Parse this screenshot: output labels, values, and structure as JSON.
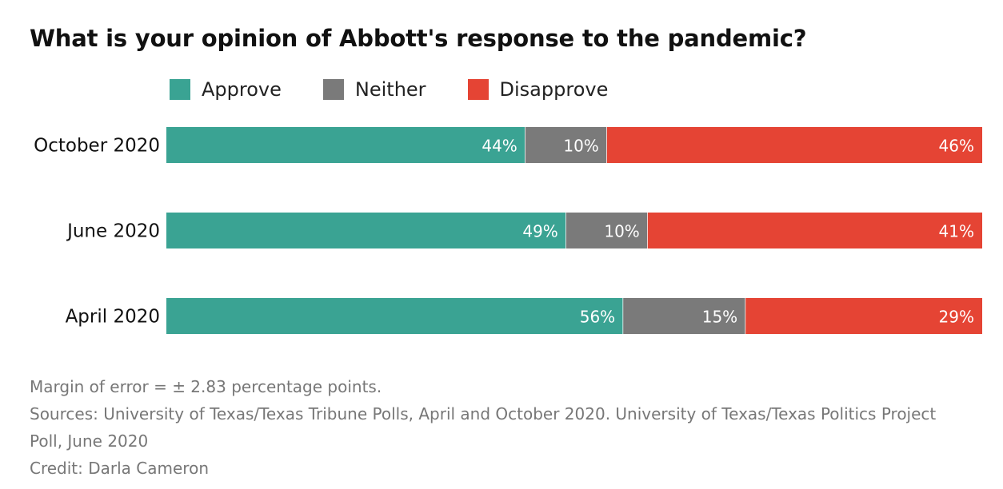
{
  "title": "What is your opinion of Abbott's response to the pandemic?",
  "legend": [
    {
      "label": "Approve",
      "color": "#3aa393"
    },
    {
      "label": "Neither",
      "color": "#7a7a7a"
    },
    {
      "label": "Disapprove",
      "color": "#e54434"
    }
  ],
  "chart_data": {
    "type": "bar",
    "orientation": "horizontal",
    "stacked": true,
    "categories": [
      "October 2020",
      "June 2020",
      "April 2020"
    ],
    "series": [
      {
        "name": "Approve",
        "values": [
          44,
          49,
          56
        ],
        "color": "#3aa393"
      },
      {
        "name": "Neither",
        "values": [
          10,
          10,
          15
        ],
        "color": "#7a7a7a"
      },
      {
        "name": "Disapprove",
        "values": [
          46,
          41,
          29
        ],
        "color": "#e54434"
      }
    ],
    "value_suffix": "%",
    "legend_position": "top"
  },
  "notes": {
    "margin": "Margin of error = ± 2.83 percentage points.",
    "sources": "Sources: University of Texas/Texas Tribune Polls, April and October 2020. University of Texas/Texas Politics Project Poll, June 2020",
    "credit": "Credit: Darla Cameron"
  }
}
